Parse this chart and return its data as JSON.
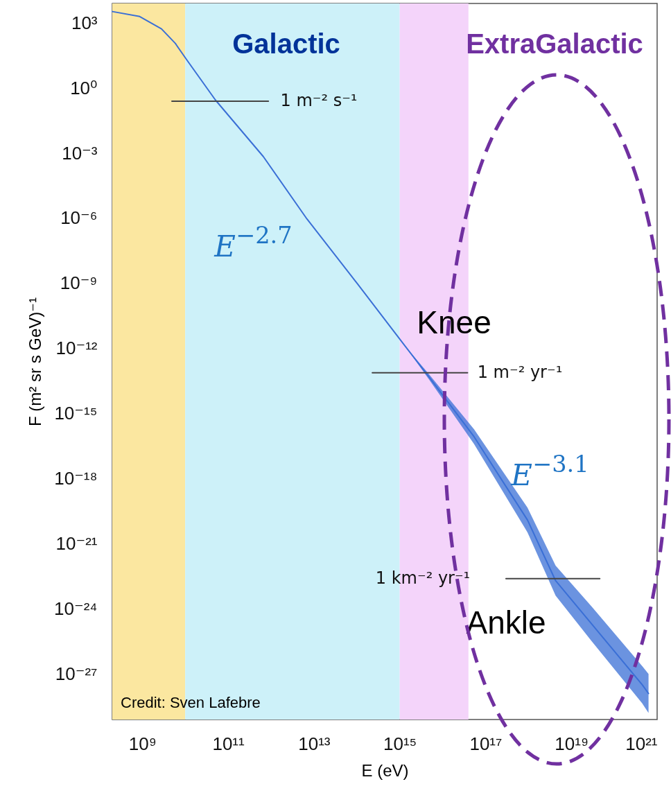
{
  "chart_data": {
    "type": "line",
    "xlabel": "E (eV)",
    "ylabel": "F (m² sr s GeV)⁻¹",
    "log": "xy",
    "xlim": [
      200000000.0,
      1e+21
    ],
    "ylim": [
      8e-30,
      8000.0
    ],
    "xticks": [
      {
        "value": 1000000000.0,
        "label": "10⁹"
      },
      {
        "value": 100000000000.0,
        "label": "10¹¹"
      },
      {
        "value": 10000000000000.0,
        "label": "10¹³"
      },
      {
        "value": 1000000000000000.0,
        "label": "10¹⁵"
      },
      {
        "value": 1e+17,
        "label": "10¹⁷"
      },
      {
        "value": 1e+19,
        "label": "10¹⁹"
      },
      {
        "value": 1e+21,
        "label": "10²¹"
      }
    ],
    "yticks": [
      {
        "value": 1000.0,
        "label": "10³"
      },
      {
        "value": 1,
        "label": "10⁰"
      },
      {
        "value": 0.001,
        "label": "10⁻³"
      },
      {
        "value": 1e-06,
        "label": "10⁻⁶"
      },
      {
        "value": 1e-09,
        "label": "10⁻⁹"
      },
      {
        "value": 1e-12,
        "label": "10⁻¹²"
      },
      {
        "value": 1e-15,
        "label": "10⁻¹⁵"
      },
      {
        "value": 1e-18,
        "label": "10⁻¹⁸"
      },
      {
        "value": 1e-21,
        "label": "10⁻²¹"
      },
      {
        "value": 1e-24,
        "label": "10⁻²⁴"
      },
      {
        "value": 1e-27,
        "label": "10⁻²⁷"
      }
    ],
    "series": [
      {
        "color": "#3a6fd6",
        "x": [
          200000000.0,
          870000000.0,
          2800000000.0,
          5900000000.0,
          11000000000.0,
          51000000000.0,
          660000000000.0,
          6900000000000.0,
          105000000000000.0,
          1350000000000000.0,
          4800000000000000.0,
          5.4e+16,
          9.5e+17,
          4.3e+18,
          3e+19,
          4.5e+20,
          6.3e+20
        ],
        "values": [
          3400.0,
          2000.0,
          540,
          115,
          19.5,
          0.28,
          0.00071,
          9.3e-07,
          9.3e-10,
          1.26e-12,
          5e-14,
          8.7e-17,
          1.26e-20,
          2e-23,
          2e-25,
          3.2e-28,
          1.26e-28
        ],
        "lower": [
          null,
          null,
          null,
          null,
          null,
          null,
          null,
          null,
          null,
          1.26e-12,
          3.8e-14,
          4e-17,
          3.4e-21,
          4.1e-24,
          3.2e-26,
          4.4e-29,
          1.6e-29
        ],
        "upper": [
          null,
          null,
          null,
          null,
          null,
          null,
          null,
          null,
          null,
          1.26e-12,
          6.6e-14,
          1.9e-16,
          4.7e-20,
          9.8e-23,
          1.26e-24,
          2.3e-27,
          1e-27
        ]
      },
      {
        "color": "#444444",
        "x": [
          4900000000.0,
          870000000000.0
        ],
        "values": [
          0.25,
          0.25
        ]
      },
      {
        "color": "#444444",
        "x": [
          230000000000000.0,
          3.8e+16
        ],
        "values": [
          7.6e-14,
          7.6e-14
        ]
      },
      {
        "color": "#444444",
        "x": [
          3e+17,
          4.6e+19
        ],
        "values": [
          2.5e-23,
          2.5e-23
        ]
      }
    ],
    "bands": [
      {
        "axis": "x",
        "from": 200000000.0,
        "to": 10000000000.0,
        "color": "#fbe7a0"
      },
      {
        "axis": "x",
        "from": 10000000000.0,
        "to": 1000000000000000.0,
        "color": "#cdf1f9"
      },
      {
        "axis": "x",
        "from": 1000000000000000.0,
        "to": 4e+16,
        "color": "#f4d4fa"
      }
    ],
    "annotations": [
      "Galactic",
      "ExtraGalactic",
      "E$^{−2.7}$",
      "Knee",
      "E$^{−3.1}$",
      "Ankle",
      "1 m⁻² s⁻¹",
      "1 m⁻² yr⁻¹",
      "1 km⁻² yr⁻¹",
      "Credit: Sven Lafebre"
    ]
  }
}
